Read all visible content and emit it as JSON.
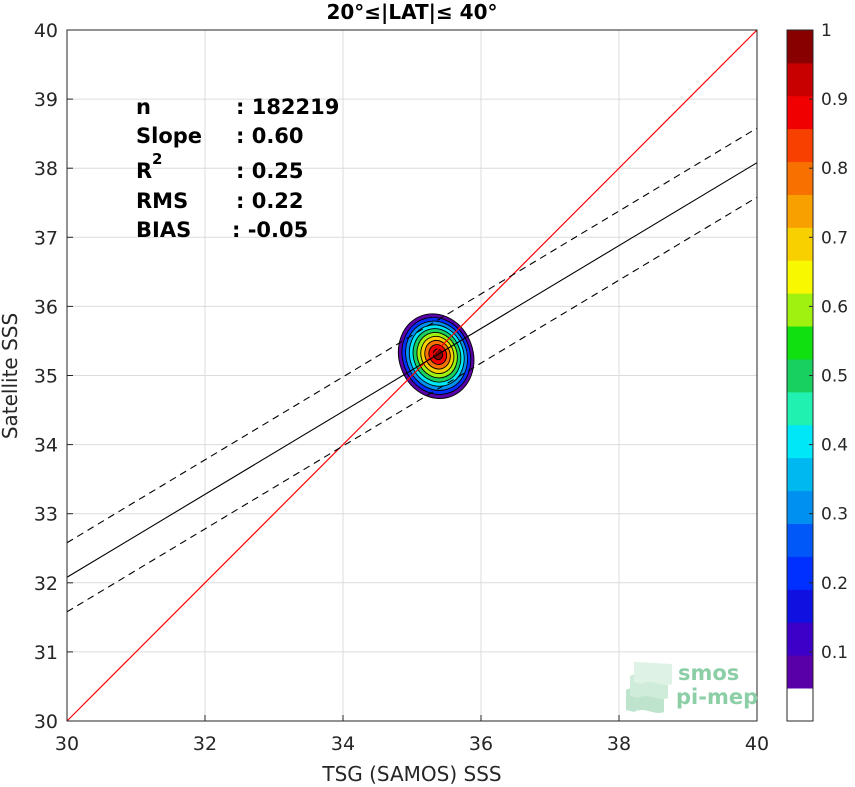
{
  "chart_data": {
    "type": "scatter",
    "title": "20°≤|LAT|≤ 40°",
    "xlabel": "TSG (SAMOS) SSS",
    "ylabel": "Satellite SSS",
    "xlim": [
      30,
      40
    ],
    "ylim": [
      30,
      40
    ],
    "xticks": [
      "30",
      "32",
      "34",
      "36",
      "38",
      "40"
    ],
    "yticks": [
      "30",
      "31",
      "32",
      "33",
      "34",
      "35",
      "36",
      "37",
      "38",
      "39",
      "40"
    ],
    "grid": true,
    "stats": [
      {
        "label": "n",
        "value": ": 182219"
      },
      {
        "label": "Slope",
        "value": ": 0.60"
      },
      {
        "label": "R",
        "sup": "2",
        "value": ": 0.25"
      },
      {
        "label": "RMS",
        "value": ": 0.22"
      },
      {
        "label": "BIAS",
        "value": ": -0.05"
      }
    ],
    "lines": {
      "identity": {
        "color": "#ff0000",
        "from": [
          30,
          30
        ],
        "to": [
          40,
          40
        ]
      },
      "fit": {
        "slope": 0.6,
        "intercept": 14.08,
        "color": "#000000"
      },
      "fit_upper": {
        "slope": 0.6,
        "intercept": 14.58,
        "style": "dashed"
      },
      "fit_lower": {
        "slope": 0.6,
        "intercept": 13.58,
        "style": "dashed"
      }
    },
    "density_contour": {
      "center": [
        35.35,
        35.28
      ],
      "levels": [
        0.05,
        0.15,
        0.25,
        0.35,
        0.45,
        0.55,
        0.65,
        0.75,
        0.85,
        0.95
      ]
    },
    "colorbar": {
      "range": [
        0,
        1
      ],
      "tick_labels": [
        "0.1",
        "0.2",
        "0.3",
        "0.4",
        "0.5",
        "0.6",
        "0.7",
        "0.8",
        "0.9",
        "1"
      ],
      "colors": [
        "#ffffff",
        "#5a00a8",
        "#3d00c8",
        "#1010e0",
        "#0030ff",
        "#0058f8",
        "#0090f0",
        "#00b8f0",
        "#00e8f8",
        "#20f0b0",
        "#18d060",
        "#10e010",
        "#a0f010",
        "#f8f800",
        "#f8d000",
        "#f8a000",
        "#f87000",
        "#f84000",
        "#f00000",
        "#c80000",
        "#880000"
      ]
    }
  },
  "logo": {
    "line1": "smos",
    "line2": "pi-mep"
  }
}
